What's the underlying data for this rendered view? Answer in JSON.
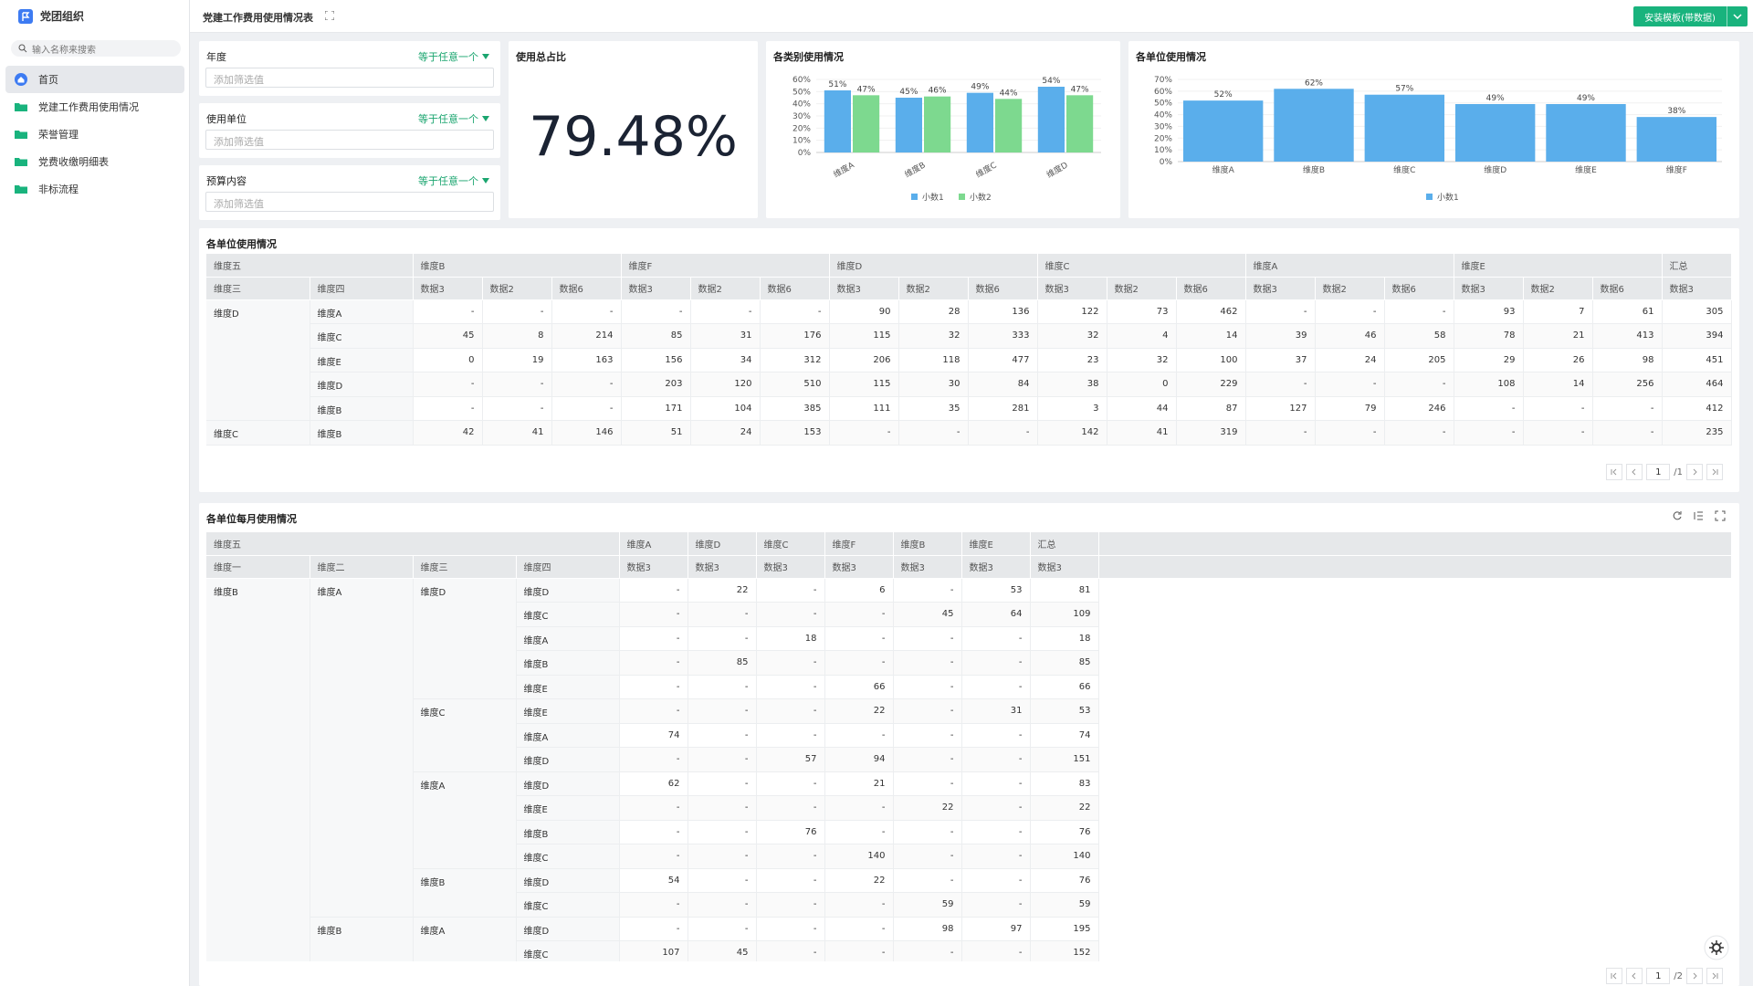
{
  "sidebar": {
    "title": "党团组织",
    "search_placeholder": "输入名称来搜索",
    "menu": [
      "首页",
      "党建工作费用使用情况",
      "荣誉管理",
      "党费收缴明细表",
      "非标流程"
    ]
  },
  "header": {
    "title": "党建工作费用使用情况表",
    "button": "安装模板(带数据)"
  },
  "filters": [
    {
      "label": "年度",
      "operator": "等于任意一个",
      "placeholder": "添加筛选值"
    },
    {
      "label": "使用单位",
      "operator": "等于任意一个",
      "placeholder": "添加筛选值"
    },
    {
      "label": "预算内容",
      "operator": "等于任意一个",
      "placeholder": "添加筛选值"
    }
  ],
  "kpi": {
    "title": "使用总占比",
    "value": "79.48%"
  },
  "category_chart": {
    "type": "bar",
    "title": "各类别使用情况",
    "categories": [
      "维度A",
      "维度B",
      "维度C",
      "维度D"
    ],
    "series": [
      {
        "name": "小数1",
        "color": "#5aaeeb",
        "values": [
          51,
          45,
          49,
          54
        ],
        "value_labels": [
          "51%",
          "45%",
          "49%",
          "54%"
        ]
      },
      {
        "name": "小数2",
        "color": "#7dd98f",
        "values": [
          47,
          46,
          44,
          47
        ],
        "value_labels": [
          "47%",
          "46%",
          "44%",
          "47%"
        ]
      }
    ],
    "ylim": [
      0,
      60
    ],
    "yticks": [
      {
        "value": 0,
        "label": "0%"
      },
      {
        "value": 10,
        "label": "10%"
      },
      {
        "value": 20,
        "label": "20%"
      },
      {
        "value": 30,
        "label": "30%"
      },
      {
        "value": 40,
        "label": "40%"
      },
      {
        "value": 50,
        "label": "50%"
      },
      {
        "value": 60,
        "label": "60%"
      }
    ],
    "grid": true,
    "legend": "bottom"
  },
  "unit_chart": {
    "type": "bar",
    "title": "各单位使用情况",
    "categories": [
      "维度A",
      "维度B",
      "维度C",
      "维度D",
      "维度E",
      "维度F"
    ],
    "series": [
      {
        "name": "小数1",
        "color": "#5aaeeb",
        "values": [
          52,
          62,
          57,
          49,
          49,
          38
        ],
        "value_labels": [
          "52%",
          "62%",
          "57%",
          "49%",
          "49%",
          "38%"
        ]
      }
    ],
    "ylim": [
      0,
      70
    ],
    "yticks": [
      {
        "value": 0,
        "label": "0%"
      },
      {
        "value": 10,
        "label": "10%"
      },
      {
        "value": 20,
        "label": "20%"
      },
      {
        "value": 30,
        "label": "30%"
      },
      {
        "value": 40,
        "label": "40%"
      },
      {
        "value": 50,
        "label": "50%"
      },
      {
        "value": 60,
        "label": "60%"
      },
      {
        "value": 70,
        "label": "70%"
      }
    ],
    "grid": true,
    "legend": "bottom"
  },
  "unit_table": {
    "title": "各单位使用情况",
    "corner": "维度五",
    "row_dims": [
      "维度三",
      "维度四"
    ],
    "columns": [
      {
        "group": "维度B",
        "measures": [
          "数据3",
          "数据2",
          "数据6"
        ]
      },
      {
        "group": "维度F",
        "measures": [
          "数据3",
          "数据2",
          "数据6"
        ]
      },
      {
        "group": "维度D",
        "measures": [
          "数据3",
          "数据2",
          "数据6"
        ]
      },
      {
        "group": "维度C",
        "measures": [
          "数据3",
          "数据2",
          "数据6"
        ]
      },
      {
        "group": "维度A",
        "measures": [
          "数据3",
          "数据2",
          "数据6"
        ]
      },
      {
        "group": "维度E",
        "measures": [
          "数据3",
          "数据2",
          "数据6"
        ]
      },
      {
        "group": "汇总",
        "measures": [
          "数据3"
        ]
      }
    ],
    "rows": [
      {
        "label": "维度D",
        "children": [
          {
            "label": "维度A",
            "cells": [
              "-",
              "-",
              "-",
              "-",
              "-",
              "-",
              90,
              28,
              136,
              122,
              73,
              462,
              "-",
              "-",
              "-",
              93,
              7,
              61,
              305
            ]
          },
          {
            "label": "维度C",
            "cells": [
              45,
              8,
              214,
              85,
              31,
              176,
              115,
              32,
              333,
              32,
              4,
              14,
              39,
              46,
              58,
              78,
              21,
              413,
              394
            ]
          },
          {
            "label": "维度E",
            "cells": [
              0,
              19,
              163,
              156,
              34,
              312,
              206,
              118,
              477,
              23,
              32,
              100,
              37,
              24,
              205,
              29,
              26,
              98,
              451
            ]
          },
          {
            "label": "维度D",
            "cells": [
              "-",
              "-",
              "-",
              203,
              120,
              510,
              115,
              30,
              84,
              38,
              0,
              229,
              "-",
              "-",
              "-",
              108,
              14,
              256,
              464
            ]
          },
          {
            "label": "维度B",
            "cells": [
              "-",
              "-",
              "-",
              171,
              104,
              385,
              111,
              35,
              281,
              3,
              44,
              87,
              127,
              79,
              246,
              "-",
              "-",
              "-",
              412
            ]
          }
        ]
      },
      {
        "label": "维度C",
        "children": [
          {
            "label": "维度B",
            "cells": [
              42,
              41,
              146,
              51,
              24,
              153,
              "-",
              "-",
              "-",
              142,
              41,
              319,
              "-",
              "-",
              "-",
              "-",
              "-",
              "-",
              235
            ]
          }
        ]
      }
    ],
    "pagination": {
      "page": 1,
      "pages": "/1"
    }
  },
  "monthly_table": {
    "title": "各单位每月使用情况",
    "corner": "维度五",
    "row_dims": [
      "维度一",
      "维度二",
      "维度三",
      "维度四"
    ],
    "columns": [
      {
        "group": "维度A",
        "measures": [
          "数据3"
        ]
      },
      {
        "group": "维度D",
        "measures": [
          "数据3"
        ]
      },
      {
        "group": "维度C",
        "measures": [
          "数据3"
        ]
      },
      {
        "group": "维度F",
        "measures": [
          "数据3"
        ]
      },
      {
        "group": "维度B",
        "measures": [
          "数据3"
        ]
      },
      {
        "group": "维度E",
        "measures": [
          "数据3"
        ]
      },
      {
        "group": "汇总",
        "measures": [
          "数据3"
        ]
      }
    ],
    "rows": [
      {
        "label": "维度B",
        "children": [
          {
            "label": "维度A",
            "children": [
              {
                "label": "维度D",
                "children": [
                  {
                    "label": "维度D",
                    "cells": [
                      "-",
                      22,
                      "-",
                      6,
                      "-",
                      53,
                      81
                    ]
                  },
                  {
                    "label": "维度C",
                    "cells": [
                      "-",
                      "-",
                      "-",
                      "-",
                      45,
                      64,
                      109
                    ]
                  },
                  {
                    "label": "维度A",
                    "cells": [
                      "-",
                      "-",
                      18,
                      "-",
                      "-",
                      "-",
                      18
                    ]
                  },
                  {
                    "label": "维度B",
                    "cells": [
                      "-",
                      85,
                      "-",
                      "-",
                      "-",
                      "-",
                      85
                    ]
                  },
                  {
                    "label": "维度E",
                    "cells": [
                      "-",
                      "-",
                      "-",
                      66,
                      "-",
                      "-",
                      66
                    ]
                  }
                ]
              },
              {
                "label": "维度C",
                "children": [
                  {
                    "label": "维度E",
                    "cells": [
                      "-",
                      "-",
                      "-",
                      22,
                      "-",
                      31,
                      53
                    ]
                  },
                  {
                    "label": "维度A",
                    "cells": [
                      74,
                      "-",
                      "-",
                      "-",
                      "-",
                      "-",
                      74
                    ]
                  },
                  {
                    "label": "维度D",
                    "cells": [
                      "-",
                      "-",
                      57,
                      94,
                      "-",
                      "-",
                      151
                    ]
                  }
                ]
              },
              {
                "label": "维度A",
                "children": [
                  {
                    "label": "维度D",
                    "cells": [
                      62,
                      "-",
                      "-",
                      21,
                      "-",
                      "-",
                      83
                    ]
                  },
                  {
                    "label": "维度E",
                    "cells": [
                      "-",
                      "-",
                      "-",
                      "-",
                      22,
                      "-",
                      22
                    ]
                  },
                  {
                    "label": "维度B",
                    "cells": [
                      "-",
                      "-",
                      76,
                      "-",
                      "-",
                      "-",
                      76
                    ]
                  },
                  {
                    "label": "维度C",
                    "cells": [
                      "-",
                      "-",
                      "-",
                      140,
                      "-",
                      "-",
                      140
                    ]
                  }
                ]
              },
              {
                "label": "维度B",
                "children": [
                  {
                    "label": "维度D",
                    "cells": [
                      54,
                      "-",
                      "-",
                      22,
                      "-",
                      "-",
                      76
                    ]
                  },
                  {
                    "label": "维度C",
                    "cells": [
                      "-",
                      "-",
                      "-",
                      "-",
                      59,
                      "-",
                      59
                    ]
                  }
                ]
              }
            ]
          },
          {
            "label": "维度B",
            "children": [
              {
                "label": "维度A",
                "children": [
                  {
                    "label": "维度D",
                    "cells": [
                      "-",
                      "-",
                      "-",
                      "-",
                      98,
                      97,
                      195
                    ]
                  },
                  {
                    "label": "维度C",
                    "cells": [
                      107,
                      45,
                      "-",
                      "-",
                      "-",
                      "-",
                      152
                    ]
                  }
                ]
              }
            ]
          }
        ]
      }
    ],
    "pagination": {
      "page": 1,
      "pages": "/2"
    }
  }
}
